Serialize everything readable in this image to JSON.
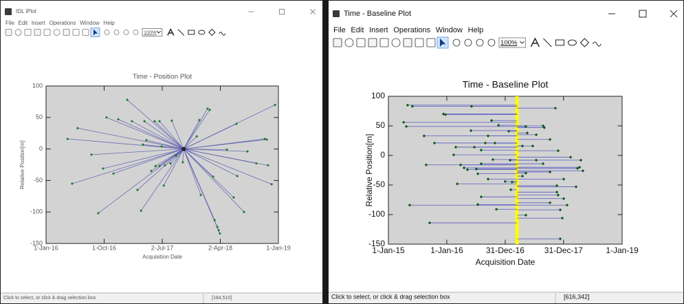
{
  "windows": [
    {
      "title": "IDL iPlot",
      "menu": [
        "File",
        "Edit",
        "Insert",
        "Operations",
        "Window",
        "Help"
      ],
      "zoom": "100%",
      "status": "Click to select, or click & drag selection box",
      "coords": "[184,510]"
    },
    {
      "title": "Time - Baseline Plot",
      "menu": [
        "File",
        "Edit",
        "Insert",
        "Operations",
        "Window",
        "Help"
      ],
      "zoom": "100%",
      "status": "Click to select, or click & drag selection box",
      "coords": "[616,342]"
    }
  ],
  "chart_data": [
    {
      "type": "scatter",
      "title": "Time - Position Plot",
      "xlabel": "Acquisition Date",
      "ylabel": "Relative Position[m]",
      "color": "#1f7a2a",
      "link_color": "#5a5ab0",
      "reference_point": {
        "x": "2017-10-11",
        "y": 0
      },
      "x": [
        "2017-01-18",
        "2016-10-12",
        "2016-12-07",
        "2017-02-09",
        "2017-04-09",
        "2017-05-27",
        "2017-06-19",
        "2017-08-16",
        "2017-12-24",
        "2018-02-01",
        "2018-02-11",
        "2018-06-17",
        "2018-12-16",
        "2016-05-29",
        "2016-04-11",
        "2016-08-02",
        "2018-10-28",
        "2018-11-07",
        "2017-04-18",
        "2017-04-02",
        "2017-06-29",
        "2017-12-12",
        "2018-05-03",
        "2018-08-08",
        "2016-09-26",
        "2016-11-14",
        "2017-05-11",
        "2017-05-31",
        "2017-06-19",
        "2017-07-15",
        "2017-08-10",
        "2017-09-05",
        "2017-10-07",
        "2018-02-27",
        "2018-06-21",
        "2018-09-19",
        "2018-11-13",
        "2018-11-30",
        "2016-05-03",
        "2017-03-07",
        "2017-07-09",
        "2017-12-31",
        "2018-06-04",
        "2017-03-24",
        "2016-09-03",
        "2018-07-23",
        "2018-03-06",
        "2018-03-19",
        "2018-03-25",
        "2018-03-31"
      ],
      "values": [
        78,
        50,
        47,
        44,
        44,
        44,
        44,
        45,
        46,
        64,
        62,
        40,
        70,
        33,
        16,
        -9,
        16,
        15,
        14,
        7,
        4,
        20,
        -1,
        -4,
        -31,
        -39,
        -35,
        -27,
        -27,
        -26,
        -23,
        -11,
        -21,
        -44,
        -43,
        -23,
        -26,
        -56,
        -55,
        -65,
        -58,
        -73,
        -77,
        -98,
        -102,
        -100,
        -113,
        -124,
        -129,
        -134
      ],
      "xlim": [
        "2016-01-01",
        "2019-01-01"
      ],
      "xticks": [
        {
          "value": "2016-01-01",
          "label": "1-Jan-16"
        },
        {
          "value": "2016-10-01",
          "label": "1-Oct-16"
        },
        {
          "value": "2017-07-02",
          "label": "2-Jul-17"
        },
        {
          "value": "2018-04-02",
          "label": "2-Apr-18"
        },
        {
          "value": "2019-01-01",
          "label": "1-Jan-19"
        }
      ],
      "ylim": [
        -150,
        100
      ],
      "yticks": [
        -150,
        -100,
        -50,
        0,
        50,
        100
      ]
    },
    {
      "type": "scatter",
      "title": "Time - Baseline Plot",
      "xlabel": "Acquisition Date",
      "ylabel": "Relative Position[m]",
      "color": "#0c5a12",
      "link_color": "#4646c0",
      "reference_color": "#ffff00",
      "reference_date": "2017-03-15",
      "x": [
        "2015-05-01",
        "2015-05-31",
        "2015-12-11",
        "2015-12-24",
        "2016-06-04",
        "2017-11-10",
        "2015-04-06",
        "2015-04-23",
        "2016-10-07",
        "2016-11-19",
        "2017-05-09",
        "2017-08-25",
        "2017-09-02",
        "2016-05-31",
        "2017-01-22",
        "2017-05-18",
        "2015-08-12",
        "2016-09-15",
        "2017-07-13",
        "2015-10-16",
        "2016-08-29",
        "2016-10-28",
        "2017-10-07",
        "2016-02-26",
        "2016-06-21",
        "2017-04-18",
        "2017-06-21",
        "2016-08-03",
        "2017-11-27",
        "2016-02-13",
        "2018-02-13",
        "2016-10-15",
        "2017-01-31",
        "2017-07-13",
        "2018-04-18",
        "2015-08-25",
        "2016-03-27",
        "2016-08-03",
        "2017-08-25",
        "2018-04-10",
        "2016-04-18",
        "2018-03-28",
        "2018-05-01",
        "2016-05-09",
        "2016-07-04",
        "2017-05-09",
        "2017-10-07",
        "2016-07-13",
        "2017-04-18",
        "2016-09-15",
        "2018-01-01",
        "2016-12-31",
        "2017-02-12",
        "2016-03-06",
        "2017-11-19",
        "2018-03-19",
        "2017-02-04",
        "2017-11-19",
        "2017-11-27",
        "2016-08-03",
        "2018-01-01",
        "2017-10-07",
        "2015-05-14",
        "2016-07-13",
        "2018-01-22",
        "2016-11-06",
        "2017-12-10",
        "2017-05-09",
        "2017-12-23",
        "2015-09-16",
        "2017-12-10"
      ],
      "values": [
        85,
        83,
        70,
        69,
        83,
        80,
        56,
        49,
        59,
        51,
        49,
        50,
        47,
        42,
        41,
        38,
        33,
        33,
        35,
        21,
        21,
        21,
        27,
        14,
        14,
        16,
        16,
        9,
        8,
        1,
        -3,
        -7,
        -8,
        -8,
        -8,
        -16,
        -16,
        -14,
        -14,
        -20,
        -21,
        -22,
        -26,
        -24,
        -23,
        -30,
        -28,
        -31,
        -35,
        -40,
        -40,
        -44,
        -45,
        -48,
        -51,
        -53,
        -58,
        -62,
        -67,
        -70,
        -73,
        -80,
        -84,
        -83,
        -84,
        -91,
        -92,
        -101,
        -106,
        -114,
        -141
      ],
      "xlim": [
        "2015-01-01",
        "2019-01-01"
      ],
      "xticks": [
        {
          "value": "2015-01-01",
          "label": "1-Jan-15"
        },
        {
          "value": "2016-01-01",
          "label": "1-Jan-16"
        },
        {
          "value": "2016-12-31",
          "label": "31-Dec-16"
        },
        {
          "value": "2017-12-31",
          "label": "31-Dec-17"
        },
        {
          "value": "2019-01-01",
          "label": "1-Jan-19"
        }
      ],
      "ylim": [
        -150,
        100
      ],
      "yticks": [
        -150,
        -100,
        -50,
        0,
        50,
        100
      ]
    }
  ]
}
